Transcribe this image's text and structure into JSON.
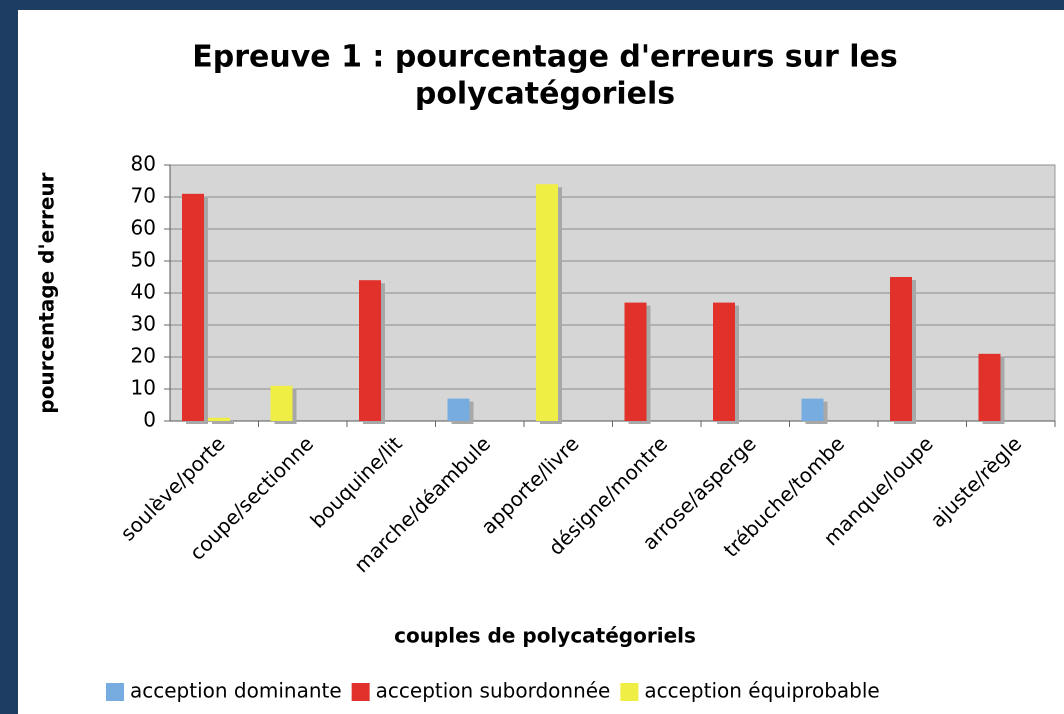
{
  "chart_data": {
    "type": "bar",
    "title": [
      "Epreuve 1 : pourcentage d'erreurs sur les",
      "polycatégoriels"
    ],
    "xlabel": "couples de polycatégoriels",
    "ylabel": "pourcentage d'erreur",
    "categories": [
      "soulève/porte",
      "coupe/sectionne",
      "bouquine/lit",
      "marche/déambule",
      "apporte/livre",
      "désigne/montre",
      "arrose/asperge",
      "trébuche/tombe",
      "manque/loupe",
      "ajuste/règle"
    ],
    "series": [
      {
        "name": "acception dominante",
        "color": "#76acdf",
        "values": [
          null,
          null,
          null,
          7,
          null,
          null,
          null,
          7,
          null,
          null
        ]
      },
      {
        "name": "acception subordonnée",
        "color": "#e2302a",
        "values": [
          71,
          null,
          44,
          null,
          null,
          37,
          37,
          null,
          45,
          21
        ]
      },
      {
        "name": "acception équiprobable",
        "color": "#eeee44",
        "values": [
          1,
          11,
          null,
          null,
          74,
          null,
          null,
          null,
          null,
          null
        ]
      }
    ],
    "ylim": [
      0,
      80
    ],
    "yticks": [
      0,
      10,
      20,
      30,
      40,
      50,
      60,
      70,
      80
    ],
    "grid": true,
    "legend": "bottom"
  }
}
